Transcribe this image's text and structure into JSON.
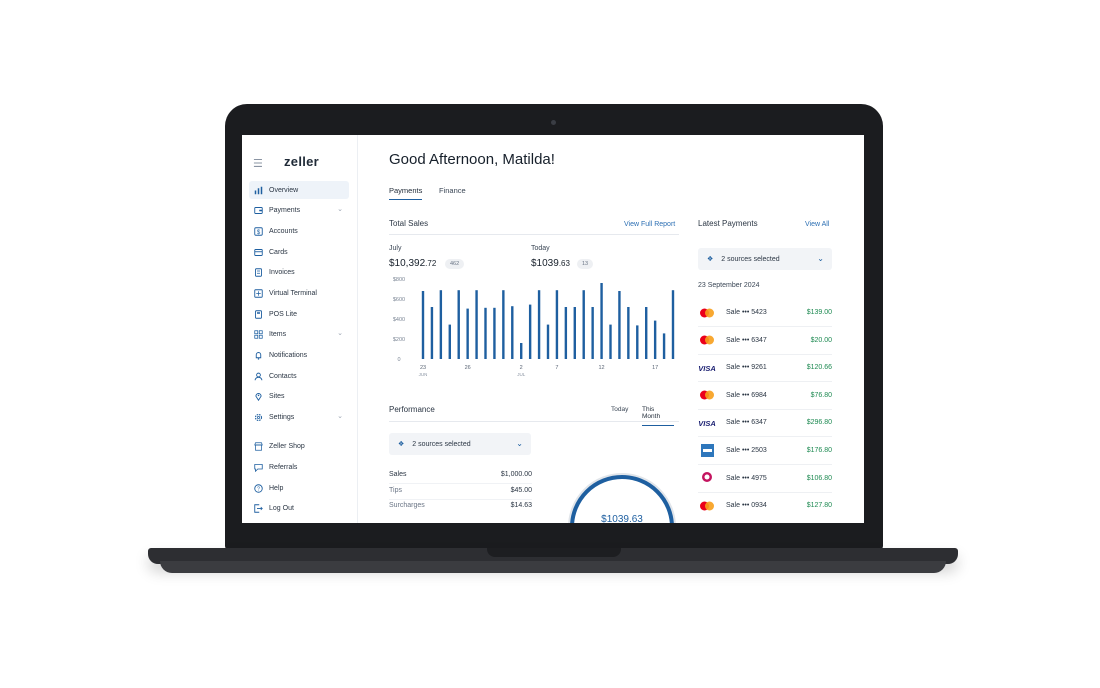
{
  "app": {
    "logo": "zeller"
  },
  "sidebar": {
    "items": [
      {
        "label": "Overview",
        "icon": "bar-chart-icon",
        "active": true
      },
      {
        "label": "Payments",
        "icon": "wallet-icon",
        "has_chevron": true
      },
      {
        "label": "Accounts",
        "icon": "dollar-box-icon"
      },
      {
        "label": "Cards",
        "icon": "card-icon"
      },
      {
        "label": "Invoices",
        "icon": "invoice-icon"
      },
      {
        "label": "Virtual Terminal",
        "icon": "terminal-icon"
      },
      {
        "label": "POS Lite",
        "icon": "pos-icon"
      },
      {
        "label": "Items",
        "icon": "grid-icon",
        "has_chevron": true
      },
      {
        "label": "Notifications",
        "icon": "bell-icon"
      },
      {
        "label": "Contacts",
        "icon": "person-icon"
      },
      {
        "label": "Sites",
        "icon": "pin-icon"
      },
      {
        "label": "Settings",
        "icon": "gear-icon",
        "has_chevron": true
      },
      {
        "label": "Zeller Shop",
        "icon": "shop-icon"
      },
      {
        "label": "Referrals",
        "icon": "chat-icon"
      },
      {
        "label": "Help",
        "icon": "help-icon"
      },
      {
        "label": "Log Out",
        "icon": "logout-icon"
      }
    ]
  },
  "main": {
    "greeting": "Good Afternoon, Matilda!",
    "tabs": [
      {
        "label": "Payments",
        "active": true
      },
      {
        "label": "Finance",
        "active": false
      }
    ],
    "total_sales": {
      "title": "Total Sales",
      "link": "View Full Report",
      "month_label": "July",
      "month_amount_dollars": "$10,392",
      "month_amount_cents": ".72",
      "month_count": "462",
      "today_label": "Today",
      "today_amount_dollars": "$1039",
      "today_amount_cents": ".63",
      "today_count": "13"
    },
    "performance": {
      "title": "Performance",
      "tab_today": "Today",
      "tab_month": "This Month",
      "sources": "2 sources selected",
      "rows": [
        {
          "label": "Sales",
          "value": "$1,000.00"
        },
        {
          "label": "Tips",
          "value": "$45.00"
        },
        {
          "label": "Surcharges",
          "value": "$14.63"
        }
      ],
      "donut_amount": "$1039.63"
    }
  },
  "latest_payments": {
    "title": "Latest Payments",
    "link": "View All",
    "sources": "2 sources selected",
    "date": "23 September 2024",
    "rows": [
      {
        "card": "mastercard",
        "desc": "Sale ••• 5423",
        "amount": "$139.00"
      },
      {
        "card": "mastercard",
        "desc": "Sale ••• 6347",
        "amount": "$20.00"
      },
      {
        "card": "visa",
        "desc": "Sale ••• 9261",
        "amount": "$120.66"
      },
      {
        "card": "mastercard",
        "desc": "Sale ••• 6984",
        "amount": "$76.80"
      },
      {
        "card": "visa",
        "desc": "Sale ••• 6347",
        "amount": "$296.80"
      },
      {
        "card": "amex",
        "desc": "Sale ••• 2503",
        "amount": "$176.80"
      },
      {
        "card": "eftpos",
        "desc": "Sale ••• 4975",
        "amount": "$106.80"
      },
      {
        "card": "mastercard",
        "desc": "Sale ••• 0934",
        "amount": "$127.80"
      }
    ]
  },
  "colors": {
    "accent": "#1e5fa0",
    "bar": "#1e5fa0",
    "positive": "#1e8a52",
    "mastercard_red": "#eb001b",
    "mastercard_orange": "#f79e1b",
    "visa_navy": "#1a1f71",
    "amex_blue": "#2e77bc",
    "eftpos_magenta": "#c4145f"
  },
  "chart_data": {
    "type": "bar",
    "y_ticks": [
      "$800",
      "$600",
      "$400",
      "$200",
      "0"
    ],
    "ylim": [
      0,
      1000
    ],
    "x_ticks": [
      {
        "label": "23",
        "sub": "JUN"
      },
      {
        "label": "26",
        "sub": ""
      },
      {
        "label": "2",
        "sub": "JUL"
      },
      {
        "label": "7",
        "sub": ""
      },
      {
        "label": "12",
        "sub": ""
      },
      {
        "label": "17",
        "sub": ""
      }
    ],
    "values": [
      850,
      650,
      860,
      430,
      860,
      630,
      860,
      640,
      640,
      860,
      660,
      200,
      680,
      860,
      430,
      860,
      650,
      650,
      860,
      650,
      950,
      430,
      850,
      650,
      420,
      650,
      480,
      320,
      860
    ],
    "tick_positions": [
      0,
      5,
      11,
      15,
      20,
      26
    ]
  }
}
